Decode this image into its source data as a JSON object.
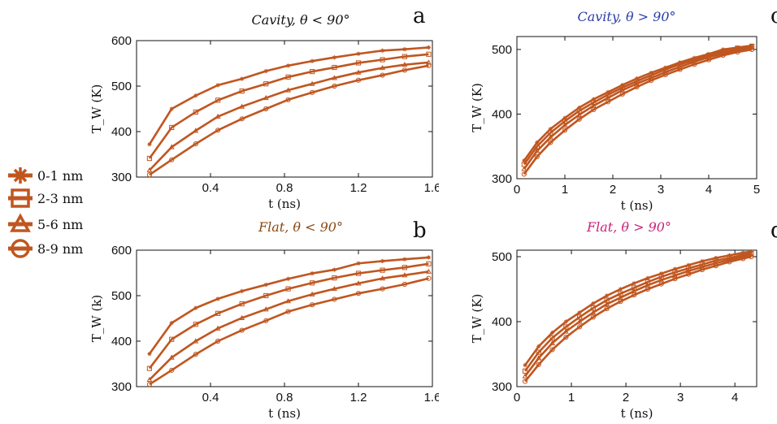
{
  "legend": {
    "entries": [
      "0-1 nm",
      "2-3 nm",
      "5-6 nm",
      "8-9 nm"
    ],
    "markers": [
      "star",
      "square",
      "triangle",
      "circle"
    ]
  },
  "colors": {
    "line": "#c0561f",
    "axis": "#111111"
  },
  "chart_data": [
    {
      "id": "a",
      "type": "line",
      "panel_letter": "a",
      "title": "Cavity, θ < 90°",
      "title_color": "#111111",
      "xlabel": "t (ns)",
      "ylabel": "T_W (K)",
      "xlim": [
        0,
        1.6
      ],
      "ylim": [
        300,
        600
      ],
      "xticks": [
        0.4,
        0.8,
        1.2,
        1.6
      ],
      "xtick_labels": [
        "0.4",
        "0.8",
        "1.2",
        "1.6"
      ],
      "yticks": [
        300,
        400,
        500,
        600
      ],
      "x": [
        0.07,
        0.19,
        0.32,
        0.44,
        0.57,
        0.7,
        0.82,
        0.95,
        1.07,
        1.2,
        1.33,
        1.45,
        1.58
      ],
      "series": [
        {
          "name": "0-1 nm",
          "marker": "star",
          "values": [
            372,
            450,
            479,
            502,
            516,
            533,
            545,
            555,
            563,
            571,
            578,
            581,
            585
          ]
        },
        {
          "name": "2-3 nm",
          "marker": "square",
          "values": [
            341,
            409,
            443,
            469,
            489,
            505,
            520,
            532,
            541,
            551,
            558,
            565,
            570
          ]
        },
        {
          "name": "5-6 nm",
          "marker": "triangle",
          "values": [
            315,
            366,
            402,
            433,
            455,
            474,
            491,
            505,
            518,
            530,
            540,
            547,
            552
          ]
        },
        {
          "name": "8-9 nm",
          "marker": "circle",
          "values": [
            305,
            338,
            373,
            403,
            428,
            450,
            470,
            486,
            500,
            513,
            524,
            535,
            545
          ]
        }
      ]
    },
    {
      "id": "b",
      "type": "line",
      "panel_letter": "b",
      "title": "Flat, θ < 90°",
      "title_color": "#8a4a14",
      "xlabel": "t (ns)",
      "ylabel": "T_W (k)",
      "xlim": [
        0,
        1.6
      ],
      "ylim": [
        300,
        600
      ],
      "xticks": [
        0.4,
        0.8,
        1.2,
        1.6
      ],
      "xtick_labels": [
        "0.4",
        "0.8",
        "1.2",
        "1.6"
      ],
      "yticks": [
        300,
        400,
        500,
        600
      ],
      "x": [
        0.07,
        0.19,
        0.32,
        0.44,
        0.57,
        0.7,
        0.82,
        0.95,
        1.07,
        1.2,
        1.33,
        1.45,
        1.58
      ],
      "series": [
        {
          "name": "0-1 nm",
          "marker": "star",
          "values": [
            372,
            440,
            473,
            493,
            510,
            524,
            537,
            549,
            557,
            571,
            576,
            580,
            584
          ]
        },
        {
          "name": "2-3 nm",
          "marker": "square",
          "values": [
            340,
            404,
            437,
            461,
            482,
            500,
            515,
            528,
            539,
            549,
            556,
            562,
            570
          ]
        },
        {
          "name": "5-6 nm",
          "marker": "triangle",
          "values": [
            315,
            364,
            400,
            428,
            451,
            470,
            488,
            503,
            515,
            527,
            538,
            545,
            553
          ]
        },
        {
          "name": "8-9 nm",
          "marker": "circle",
          "values": [
            305,
            336,
            371,
            400,
            424,
            445,
            465,
            480,
            492,
            505,
            515,
            525,
            538
          ]
        }
      ]
    },
    {
      "id": "c",
      "type": "line",
      "panel_letter": "c",
      "title": "Cavity, θ > 90°",
      "title_color": "#2a3ea8",
      "xlabel": "t (ns)",
      "ylabel": "T_W (K)",
      "xlim": [
        0,
        5
      ],
      "ylim": [
        300,
        520
      ],
      "xticks": [
        0,
        1,
        2,
        3,
        4,
        5
      ],
      "xtick_labels": [
        "0",
        "1",
        "2",
        "3",
        "4",
        "5"
      ],
      "yticks": [
        300,
        400,
        500
      ],
      "x": [
        0.15,
        0.42,
        0.7,
        1.0,
        1.3,
        1.6,
        1.9,
        2.2,
        2.5,
        2.8,
        3.1,
        3.4,
        3.7,
        4.0,
        4.3,
        4.6,
        4.9
      ],
      "series": [
        {
          "name": "0-1 nm",
          "marker": "star",
          "values": [
            328,
            356,
            377,
            394,
            410,
            423,
            434,
            445,
            455,
            464,
            472,
            480,
            487,
            493,
            500,
            503,
            506
          ]
        },
        {
          "name": "2-3 nm",
          "marker": "square",
          "values": [
            322,
            350,
            371,
            389,
            405,
            418,
            430,
            441,
            451,
            460,
            469,
            477,
            484,
            491,
            497,
            502,
            505
          ]
        },
        {
          "name": "5-6 nm",
          "marker": "triangle",
          "values": [
            315,
            343,
            364,
            383,
            399,
            413,
            425,
            437,
            447,
            456,
            465,
            473,
            481,
            488,
            494,
            499,
            503
          ]
        },
        {
          "name": "8-9 nm",
          "marker": "circle",
          "values": [
            307,
            334,
            356,
            375,
            392,
            407,
            419,
            431,
            442,
            452,
            461,
            469,
            477,
            484,
            491,
            496,
            500
          ]
        }
      ]
    },
    {
      "id": "d",
      "type": "line",
      "panel_letter": "d",
      "title": "Flat, θ > 90°",
      "title_color": "#c8237a",
      "xlabel": "t (ns)",
      "ylabel": "T_W (K)",
      "xlim": [
        0,
        4.4
      ],
      "ylim": [
        300,
        510
      ],
      "xticks": [
        0,
        1,
        2,
        3,
        4
      ],
      "xtick_labels": [
        "0",
        "1",
        "2",
        "3",
        "4"
      ],
      "yticks": [
        300,
        400,
        500
      ],
      "x": [
        0.15,
        0.4,
        0.65,
        0.9,
        1.15,
        1.4,
        1.65,
        1.9,
        2.15,
        2.4,
        2.65,
        2.9,
        3.15,
        3.4,
        3.65,
        3.9,
        4.15,
        4.3
      ],
      "series": [
        {
          "name": "0-1 nm",
          "marker": "star",
          "values": [
            333,
            362,
            383,
            400,
            414,
            428,
            440,
            450,
            459,
            467,
            474,
            481,
            487,
            493,
            498,
            502,
            506,
            508
          ]
        },
        {
          "name": "2-3 nm",
          "marker": "square",
          "values": [
            324,
            353,
            375,
            392,
            407,
            421,
            433,
            443,
            452,
            461,
            469,
            476,
            482,
            488,
            494,
            498,
            503,
            505
          ]
        },
        {
          "name": "5-6 nm",
          "marker": "triangle",
          "values": [
            316,
            344,
            367,
            385,
            400,
            414,
            427,
            437,
            447,
            456,
            464,
            471,
            478,
            484,
            490,
            495,
            500,
            503
          ]
        },
        {
          "name": "8-9 nm",
          "marker": "circle",
          "values": [
            308,
            334,
            357,
            376,
            392,
            407,
            420,
            431,
            441,
            450,
            458,
            466,
            473,
            480,
            486,
            492,
            497,
            500
          ]
        }
      ]
    }
  ]
}
